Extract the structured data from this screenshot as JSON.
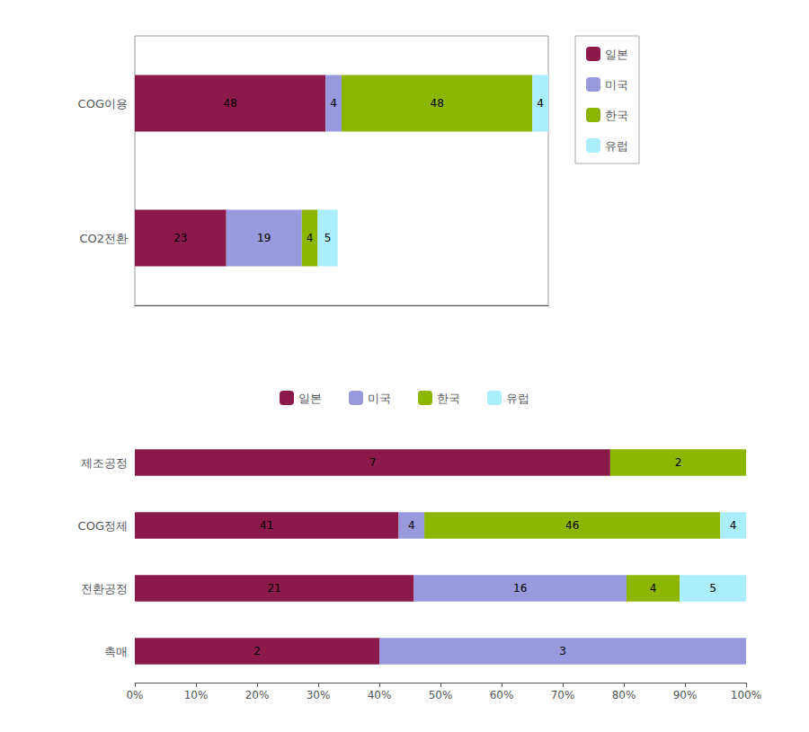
{
  "chart_data": [
    {
      "type": "bar",
      "orientation": "horizontal",
      "stacked": true,
      "categories": [
        "COG이용",
        "CO2전환"
      ],
      "series": [
        {
          "name": "일본",
          "color": "#8B1A4A",
          "values": [
            48,
            23
          ]
        },
        {
          "name": "미국",
          "color": "#9999DD",
          "values": [
            4,
            19
          ]
        },
        {
          "name": "한국",
          "color": "#8DB600",
          "values": [
            48,
            4
          ]
        },
        {
          "name": "유럽",
          "color": "#AAEEFF",
          "values": [
            4,
            5
          ]
        }
      ],
      "xlim": [
        0,
        104
      ],
      "data_labels": true,
      "tick_labels": "y",
      "grid": false,
      "legend": "right"
    },
    {
      "type": "bar",
      "orientation": "horizontal",
      "stacked": true,
      "categories": [
        "제조공정",
        "COG정제",
        "전환공정",
        "촉매"
      ],
      "series": [
        {
          "name": "일본",
          "color": "#8B1A4A",
          "values": [
            77.77777777777777,
            43.15789473684211,
            45.65217391304348,
            40
          ],
          "counts": [
            7,
            41,
            21,
            2
          ]
        },
        {
          "name": "미국",
          "color": "#9999DD",
          "values": [
            0,
            4.2105263157894735,
            34.78260869565217,
            60
          ],
          "counts": [
            0,
            4,
            16,
            3
          ]
        },
        {
          "name": "한국",
          "color": "#8DB600",
          "values": [
            22.22222222222222,
            48.421052631578945,
            8.695652173913043,
            0
          ],
          "counts": [
            2,
            46,
            4,
            0
          ]
        },
        {
          "name": "유럽",
          "color": "#AAEEFF",
          "values": [
            0,
            4.2105263157894735,
            10.869565217391305,
            0
          ],
          "counts": [
            0,
            4,
            5,
            0
          ]
        }
      ],
      "xlim": [
        0,
        100
      ],
      "xticks": [
        {
          "value": 0,
          "label": "0%"
        },
        {
          "value": 10,
          "label": "10%"
        },
        {
          "value": 20,
          "label": "20%"
        },
        {
          "value": 30,
          "label": "30%"
        },
        {
          "value": 40,
          "label": "40%"
        },
        {
          "value": 50,
          "label": "50%"
        },
        {
          "value": 60,
          "label": "60%"
        },
        {
          "value": 70,
          "label": "70%"
        },
        {
          "value": 80,
          "label": "80%"
        },
        {
          "value": 90,
          "label": "90%"
        },
        {
          "value": 100,
          "label": "100%"
        }
      ],
      "grid": false,
      "legend": "top"
    }
  ]
}
